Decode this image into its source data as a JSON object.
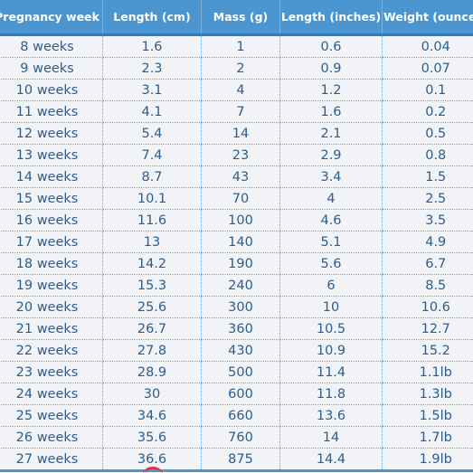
{
  "table": {
    "columns": [
      "Pregnancy week",
      "Length (cm)",
      "Mass (g)",
      "Length (inches)",
      "Weight (ounces)"
    ],
    "rows": [
      [
        "8 weeks",
        1.6,
        1,
        0.6,
        0.04
      ],
      [
        "9 weeks",
        2.3,
        2,
        0.9,
        0.07
      ],
      [
        "10 weeks",
        3.1,
        4,
        1.2,
        0.1
      ],
      [
        "11 weeks",
        4.1,
        7,
        1.6,
        0.2
      ],
      [
        "12 weeks",
        5.4,
        14,
        2.1,
        0.5
      ],
      [
        "13 weeks",
        7.4,
        23,
        2.9,
        0.8
      ],
      [
        "14 weeks",
        8.7,
        43,
        3.4,
        1.5
      ],
      [
        "15 weeks",
        10.1,
        70,
        4,
        2.5
      ],
      [
        "16 weeks",
        11.6,
        100,
        4.6,
        3.5
      ],
      [
        "17 weeks",
        13,
        140,
        5.1,
        4.9
      ],
      [
        "18 weeks",
        14.2,
        190,
        5.6,
        6.7
      ],
      [
        "19 weeks",
        15.3,
        240,
        6,
        8.5
      ],
      [
        "20 weeks",
        25.6,
        300,
        10,
        10.6
      ],
      [
        "21 weeks",
        26.7,
        360,
        10.5,
        12.7
      ],
      [
        "22 weeks",
        27.8,
        430,
        10.9,
        15.2
      ],
      [
        "23 weeks",
        28.9,
        500,
        11.4,
        "1.1lb"
      ],
      [
        "24 weeks",
        30,
        600,
        11.8,
        "1.3lb"
      ],
      [
        "25 weeks",
        34.6,
        660,
        13.6,
        "1.5lb"
      ],
      [
        "26 weeks",
        35.6,
        760,
        14,
        "1.7lb"
      ],
      [
        "27 weeks",
        36.6,
        875,
        14.4,
        "1.9lb"
      ]
    ]
  }
}
